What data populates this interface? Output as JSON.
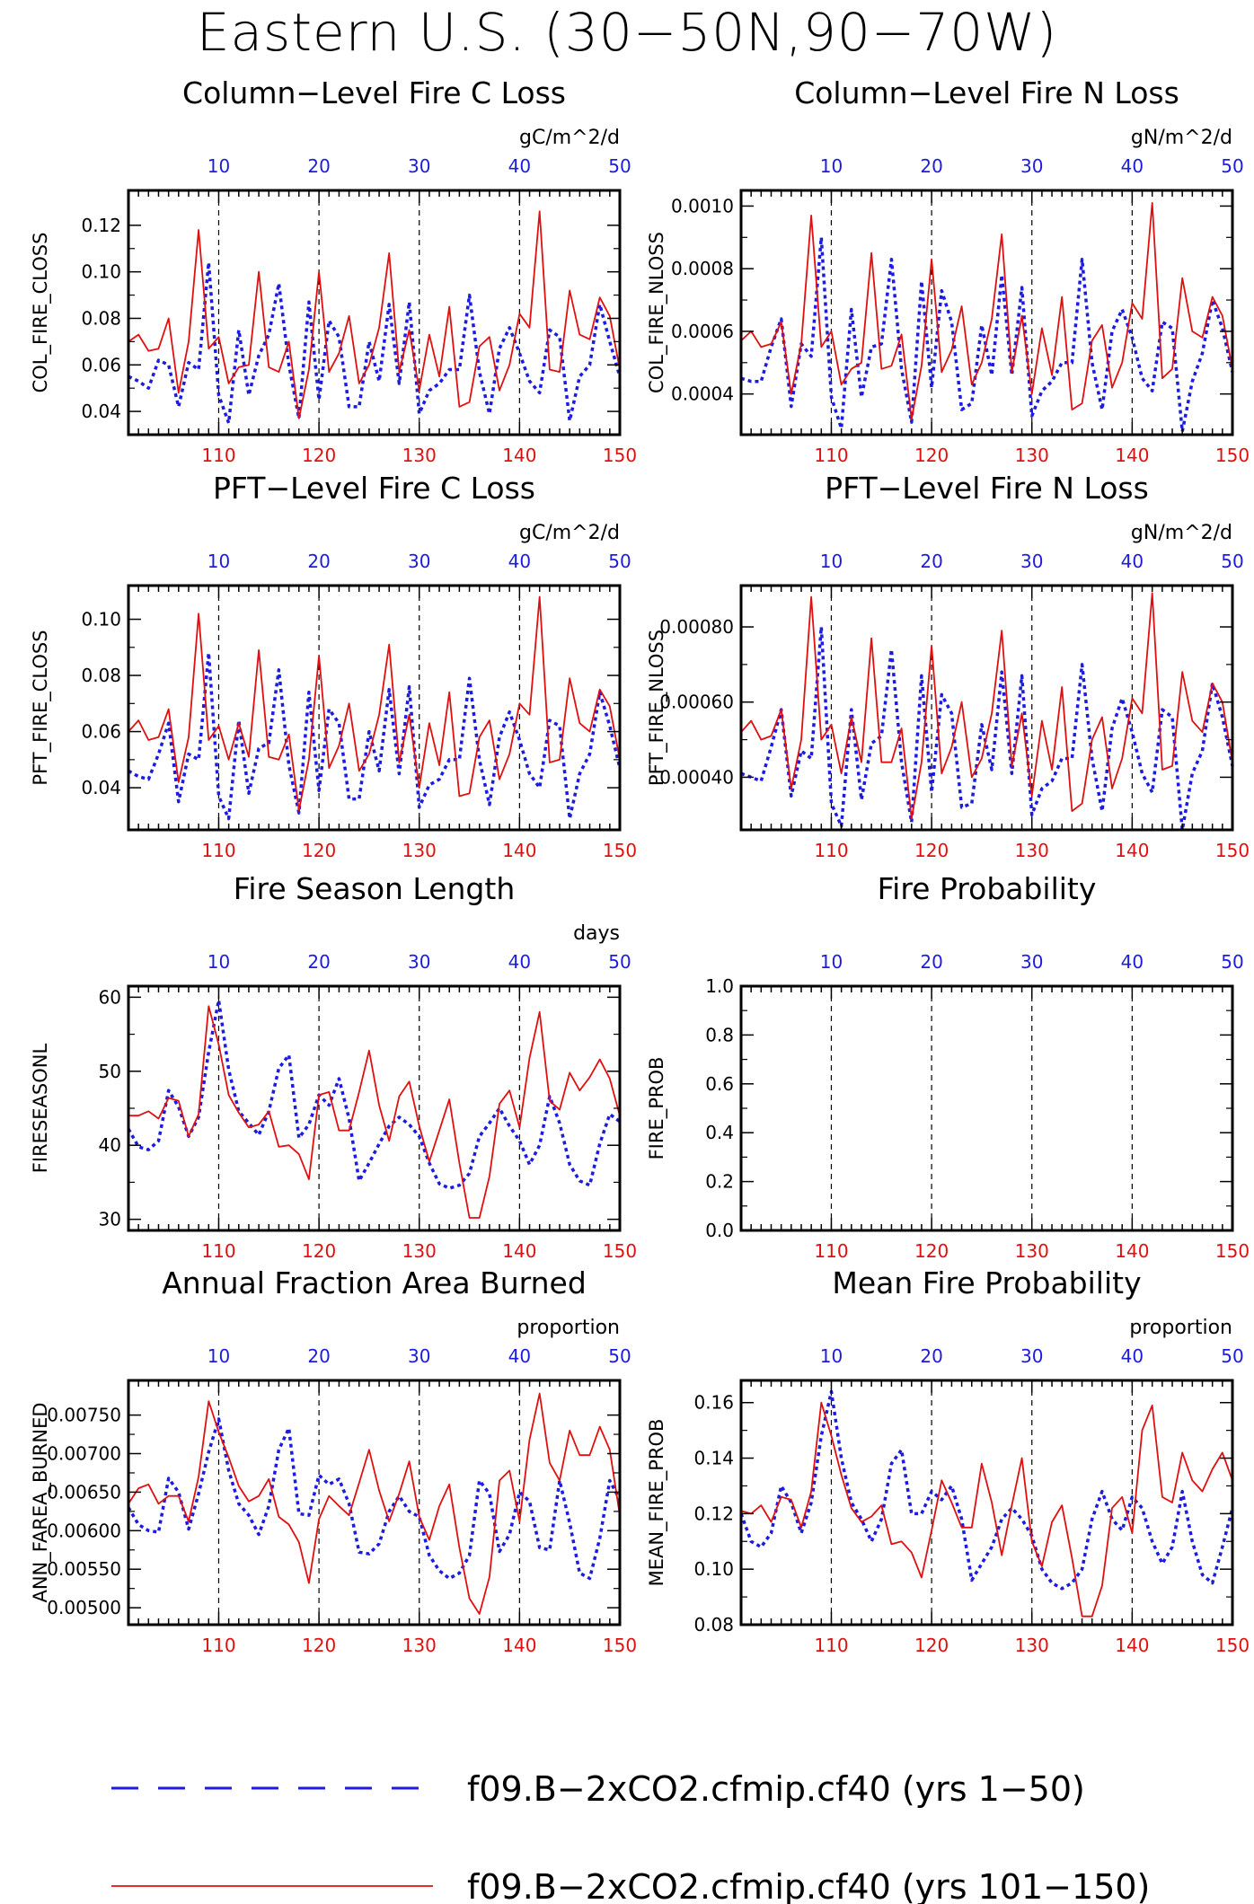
{
  "page_title": "Eastern U.S. (30−50N,90−70W)",
  "colors": {
    "series_a": "#1c1ce0",
    "series_b": "#e01010",
    "top_ticks": "#1c1ce0",
    "bottom_ticks": "#e01010"
  },
  "legend": [
    {
      "label": "f09.B−2xCO2.cfmip.cf40 (yrs 1−50)",
      "style": "dashed",
      "color": "#1c1ce0"
    },
    {
      "label": "f09.B−2xCO2.cfmip.cf40 (yrs 101−150)",
      "style": "solid",
      "color": "#e01010"
    }
  ],
  "top_axis_ticks": [
    "10",
    "20",
    "30",
    "40",
    "50"
  ],
  "bottom_axis_ticks": [
    "110",
    "120",
    "130",
    "140",
    "150"
  ],
  "chart_data": [
    {
      "type": "line",
      "title": "Column−Level Fire C Loss",
      "units": "gC/m^2/d",
      "ylabel": "COL_FIRE_CLOSS",
      "ylim": [
        0.03,
        0.135
      ],
      "yticks": [
        0.04,
        0.06,
        0.08,
        0.1,
        0.12
      ],
      "ytick_labels": [
        "0.04",
        "0.06",
        "0.08",
        "0.10",
        "0.12"
      ],
      "series": [
        {
          "values": [
            0.055,
            0.053,
            0.05,
            0.062,
            0.06,
            0.042,
            0.061,
            0.058,
            0.104,
            0.047,
            0.035,
            0.075,
            0.047,
            0.064,
            0.073,
            0.095,
            0.06,
            0.037,
            0.087,
            0.045,
            0.079,
            0.072,
            0.042,
            0.042,
            0.07,
            0.053,
            0.086,
            0.052,
            0.087,
            0.039,
            0.049,
            0.052,
            0.058,
            0.058,
            0.09,
            0.057,
            0.039,
            0.067,
            0.076,
            0.065,
            0.053,
            0.048,
            0.075,
            0.072,
            0.036,
            0.055,
            0.06,
            0.086,
            0.07,
            0.055
          ]
        },
        {
          "values": [
            0.07,
            0.073,
            0.066,
            0.067,
            0.08,
            0.048,
            0.07,
            0.118,
            0.067,
            0.072,
            0.052,
            0.059,
            0.06,
            0.1,
            0.059,
            0.057,
            0.07,
            0.037,
            0.058,
            0.1,
            0.057,
            0.065,
            0.081,
            0.052,
            0.06,
            0.076,
            0.108,
            0.057,
            0.075,
            0.049,
            0.073,
            0.055,
            0.085,
            0.042,
            0.044,
            0.068,
            0.072,
            0.049,
            0.06,
            0.082,
            0.076,
            0.126,
            0.058,
            0.057,
            0.092,
            0.073,
            0.071,
            0.089,
            0.081,
            0.058
          ]
        }
      ]
    },
    {
      "type": "line",
      "title": "Column−Level Fire N Loss",
      "units": "gN/m^2/d",
      "ylabel": "COL_FIRE_NLOSS",
      "ylim": [
        0.00027,
        0.00105
      ],
      "yticks": [
        0.0004,
        0.0006,
        0.0008,
        0.001
      ],
      "ytick_labels": [
        "0.0004",
        "0.0006",
        "0.0008",
        "0.0010"
      ],
      "series": [
        {
          "values": [
            0.00045,
            0.00044,
            0.00044,
            0.00055,
            0.00064,
            0.00036,
            0.00056,
            0.00052,
            0.0009,
            0.00039,
            0.00029,
            0.00067,
            0.00039,
            0.00055,
            0.00056,
            0.00083,
            0.00048,
            0.00031,
            0.00076,
            0.00042,
            0.00073,
            0.00063,
            0.00035,
            0.00037,
            0.00062,
            0.00046,
            0.00078,
            0.00046,
            0.00074,
            0.00033,
            0.00041,
            0.00044,
            0.0005,
            0.0005,
            0.00083,
            0.0005,
            0.00035,
            0.0006,
            0.00067,
            0.00058,
            0.00045,
            0.00041,
            0.00063,
            0.00061,
            0.00028,
            0.00044,
            0.00053,
            0.0007,
            0.00061,
            0.00047
          ]
        },
        {
          "values": [
            0.00057,
            0.0006,
            0.00055,
            0.00056,
            0.00063,
            0.0004,
            0.00056,
            0.00097,
            0.00055,
            0.0006,
            0.00043,
            0.00048,
            0.0005,
            0.00085,
            0.00048,
            0.00049,
            0.00059,
            0.00032,
            0.00049,
            0.00083,
            0.00047,
            0.00054,
            0.00068,
            0.00043,
            0.0005,
            0.00064,
            0.00091,
            0.00047,
            0.00065,
            0.0004,
            0.00061,
            0.00046,
            0.00071,
            0.00035,
            0.00037,
            0.00057,
            0.00062,
            0.00042,
            0.0005,
            0.00069,
            0.00064,
            0.00101,
            0.00045,
            0.00048,
            0.00077,
            0.0006,
            0.00058,
            0.00071,
            0.00065,
            0.00048
          ]
        }
      ]
    },
    {
      "type": "line",
      "title": "PFT−Level Fire C Loss",
      "units": "gC/m^2/d",
      "ylabel": "PFT_FIRE_CLOSS",
      "ylim": [
        0.025,
        0.112
      ],
      "yticks": [
        0.04,
        0.06,
        0.08,
        0.1
      ],
      "ytick_labels": [
        "0.04",
        "0.06",
        "0.08",
        "0.10"
      ],
      "series": [
        {
          "values": [
            0.046,
            0.044,
            0.043,
            0.052,
            0.063,
            0.035,
            0.052,
            0.05,
            0.088,
            0.037,
            0.029,
            0.064,
            0.038,
            0.054,
            0.056,
            0.082,
            0.048,
            0.031,
            0.074,
            0.039,
            0.068,
            0.063,
            0.036,
            0.036,
            0.06,
            0.046,
            0.075,
            0.045,
            0.076,
            0.033,
            0.041,
            0.043,
            0.05,
            0.05,
            0.079,
            0.05,
            0.034,
            0.058,
            0.067,
            0.057,
            0.045,
            0.04,
            0.064,
            0.062,
            0.029,
            0.045,
            0.052,
            0.074,
            0.062,
            0.047
          ]
        },
        {
          "values": [
            0.06,
            0.064,
            0.057,
            0.058,
            0.068,
            0.042,
            0.058,
            0.102,
            0.057,
            0.062,
            0.05,
            0.063,
            0.051,
            0.089,
            0.051,
            0.05,
            0.059,
            0.032,
            0.05,
            0.087,
            0.047,
            0.055,
            0.07,
            0.046,
            0.052,
            0.066,
            0.091,
            0.049,
            0.066,
            0.04,
            0.063,
            0.048,
            0.074,
            0.037,
            0.038,
            0.058,
            0.064,
            0.043,
            0.052,
            0.07,
            0.066,
            0.108,
            0.049,
            0.05,
            0.079,
            0.063,
            0.06,
            0.075,
            0.069,
            0.05
          ]
        }
      ]
    },
    {
      "type": "line",
      "title": "PFT−Level Fire N Loss",
      "units": "gN/m^2/d",
      "ylabel": "PFT_FIRE_NLOSS",
      "ylim": [
        0.00026,
        0.00091
      ],
      "yticks": [
        0.0004,
        0.0006,
        0.0008
      ],
      "ytick_labels": [
        "0.00040",
        "0.00060",
        "0.00080"
      ],
      "series": [
        {
          "values": [
            0.00041,
            0.0004,
            0.00039,
            0.00048,
            0.00058,
            0.00035,
            0.00047,
            0.00045,
            0.0008,
            0.00033,
            0.00027,
            0.00058,
            0.00034,
            0.00049,
            0.00051,
            0.00074,
            0.00044,
            0.00028,
            0.00067,
            0.00036,
            0.00062,
            0.00057,
            0.00032,
            0.00033,
            0.00054,
            0.00042,
            0.00068,
            0.00041,
            0.00067,
            0.0003,
            0.00037,
            0.00039,
            0.00045,
            0.00045,
            0.0007,
            0.00045,
            0.00031,
            0.00053,
            0.00061,
            0.00052,
            0.00041,
            0.00036,
            0.00058,
            0.00056,
            0.00026,
            0.00041,
            0.00047,
            0.00065,
            0.00056,
            0.00043
          ]
        },
        {
          "values": [
            0.00052,
            0.00055,
            0.0005,
            0.00051,
            0.00058,
            0.00037,
            0.0005,
            0.00088,
            0.0005,
            0.00054,
            0.00041,
            0.00056,
            0.00044,
            0.00077,
            0.00044,
            0.00044,
            0.00053,
            0.00029,
            0.00044,
            0.00075,
            0.00041,
            0.00048,
            0.0006,
            0.0004,
            0.00045,
            0.00057,
            0.00079,
            0.00043,
            0.00057,
            0.00035,
            0.00055,
            0.00042,
            0.00064,
            0.00031,
            0.00033,
            0.0005,
            0.00056,
            0.00037,
            0.00045,
            0.00061,
            0.00057,
            0.00089,
            0.00042,
            0.00043,
            0.00068,
            0.00055,
            0.00052,
            0.00065,
            0.0006,
            0.00044
          ]
        }
      ]
    },
    {
      "type": "line",
      "title": "Fire Season Length",
      "units": "days",
      "ylabel": "FIRESEASONL",
      "ylim": [
        28.5,
        61.5
      ],
      "yticks": [
        30,
        40,
        50,
        60
      ],
      "ytick_labels": [
        "30",
        "40",
        "50",
        "60"
      ],
      "series": [
        {
          "values": [
            42.2,
            39.8,
            39.4,
            40.6,
            47.4,
            45.2,
            41.2,
            43.8,
            52.6,
            59.6,
            50.2,
            44.6,
            43,
            41.4,
            44.6,
            50.4,
            52.2,
            41,
            42.8,
            46.8,
            45.4,
            49,
            43.6,
            35.2,
            37.6,
            40.2,
            42.6,
            43.8,
            42.8,
            41.2,
            37.6,
            34.8,
            34.2,
            34.6,
            36.2,
            41.2,
            43,
            45,
            42.6,
            40.6,
            37.4,
            40,
            46.6,
            43,
            37.4,
            35.2,
            34.6,
            40.2,
            44.2,
            43.2
          ]
        },
        {
          "values": [
            44,
            44,
            44.6,
            43.6,
            46.4,
            46,
            41.2,
            44.2,
            58.8,
            53.6,
            46.8,
            44.4,
            42.4,
            42.8,
            44.6,
            39.8,
            40,
            38.8,
            35.4,
            46.8,
            47.2,
            42,
            42,
            47.2,
            52.8,
            45.4,
            40.6,
            46.6,
            48.6,
            42.6,
            37.8,
            42,
            46.2,
            37.6,
            30.2,
            30.2,
            35.8,
            45.6,
            47.4,
            42.4,
            51.8,
            58,
            46,
            44.8,
            49.8,
            47.4,
            49.2,
            51.6,
            49,
            44
          ]
        }
      ]
    },
    {
      "type": "line",
      "title": "Fire Probability",
      "units": "",
      "ylabel": "FIRE_PROB",
      "ylim": [
        0.0,
        1.0
      ],
      "yticks": [
        0.0,
        0.2,
        0.4,
        0.6,
        0.8,
        1.0
      ],
      "ytick_labels": [
        "0.0",
        "0.2",
        "0.4",
        "0.6",
        "0.8",
        "1.0"
      ],
      "series": []
    },
    {
      "type": "line",
      "title": "Annual Fraction Area Burned",
      "units": "proportion",
      "ylabel": "ANN_FAREA_BURNED",
      "ylim": [
        0.00478,
        0.00795
      ],
      "yticks": [
        0.005,
        0.0055,
        0.006,
        0.0065,
        0.007,
        0.0075
      ],
      "ytick_labels": [
        "0.00500",
        "0.00550",
        "0.00600",
        "0.00650",
        "0.00700",
        "0.00750"
      ],
      "series": [
        {
          "values": [
            0.0063,
            0.00608,
            0.006,
            0.00598,
            0.00668,
            0.0065,
            0.00602,
            0.00648,
            0.00702,
            0.00745,
            0.00678,
            0.00635,
            0.0062,
            0.00595,
            0.00632,
            0.00705,
            0.00733,
            0.00622,
            0.0062,
            0.00672,
            0.0066,
            0.00667,
            0.00635,
            0.00572,
            0.0057,
            0.00583,
            0.00625,
            0.00645,
            0.00625,
            0.00618,
            0.00568,
            0.00548,
            0.00538,
            0.00545,
            0.00568,
            0.00665,
            0.00648,
            0.00573,
            0.00595,
            0.0065,
            0.00638,
            0.00578,
            0.00575,
            0.00665,
            0.0061,
            0.00545,
            0.00538,
            0.0059,
            0.00665,
            0.0064
          ]
        },
        {
          "values": [
            0.00635,
            0.00655,
            0.0066,
            0.00635,
            0.00645,
            0.00645,
            0.00612,
            0.0067,
            0.00768,
            0.00728,
            0.00695,
            0.00658,
            0.00638,
            0.00645,
            0.00667,
            0.00618,
            0.00608,
            0.00585,
            0.00532,
            0.00615,
            0.00645,
            0.00632,
            0.0062,
            0.00662,
            0.00705,
            0.00652,
            0.00612,
            0.00648,
            0.0069,
            0.00618,
            0.00588,
            0.00632,
            0.0066,
            0.00578,
            0.00512,
            0.00492,
            0.0054,
            0.00665,
            0.00678,
            0.00612,
            0.00718,
            0.00778,
            0.00688,
            0.00665,
            0.0073,
            0.00698,
            0.00698,
            0.00735,
            0.00705,
            0.0062
          ]
        }
      ]
    },
    {
      "type": "line",
      "title": "Mean Fire Probability",
      "units": "proportion",
      "ylabel": "MEAN_FIRE_PROB",
      "ylim": [
        0.08,
        0.168
      ],
      "yticks": [
        0.08,
        0.1,
        0.12,
        0.14,
        0.16
      ],
      "ytick_labels": [
        "0.08",
        "0.10",
        "0.12",
        "0.14",
        "0.16"
      ],
      "series": [
        {
          "values": [
            0.12,
            0.11,
            0.108,
            0.113,
            0.13,
            0.124,
            0.113,
            0.124,
            0.148,
            0.164,
            0.14,
            0.124,
            0.118,
            0.11,
            0.118,
            0.138,
            0.143,
            0.12,
            0.12,
            0.128,
            0.125,
            0.13,
            0.118,
            0.096,
            0.102,
            0.108,
            0.118,
            0.122,
            0.118,
            0.112,
            0.1,
            0.095,
            0.093,
            0.095,
            0.1,
            0.118,
            0.128,
            0.118,
            0.114,
            0.126,
            0.122,
            0.11,
            0.102,
            0.108,
            0.128,
            0.11,
            0.098,
            0.095,
            0.108,
            0.122
          ]
        },
        {
          "values": [
            0.121,
            0.12,
            0.123,
            0.117,
            0.126,
            0.125,
            0.115,
            0.128,
            0.16,
            0.148,
            0.134,
            0.122,
            0.117,
            0.119,
            0.123,
            0.109,
            0.11,
            0.106,
            0.097,
            0.114,
            0.132,
            0.124,
            0.115,
            0.115,
            0.138,
            0.124,
            0.105,
            0.123,
            0.14,
            0.11,
            0.101,
            0.117,
            0.123,
            0.104,
            0.083,
            0.083,
            0.094,
            0.122,
            0.126,
            0.113,
            0.15,
            0.159,
            0.126,
            0.124,
            0.142,
            0.132,
            0.128,
            0.136,
            0.142,
            0.132
          ]
        }
      ]
    }
  ]
}
